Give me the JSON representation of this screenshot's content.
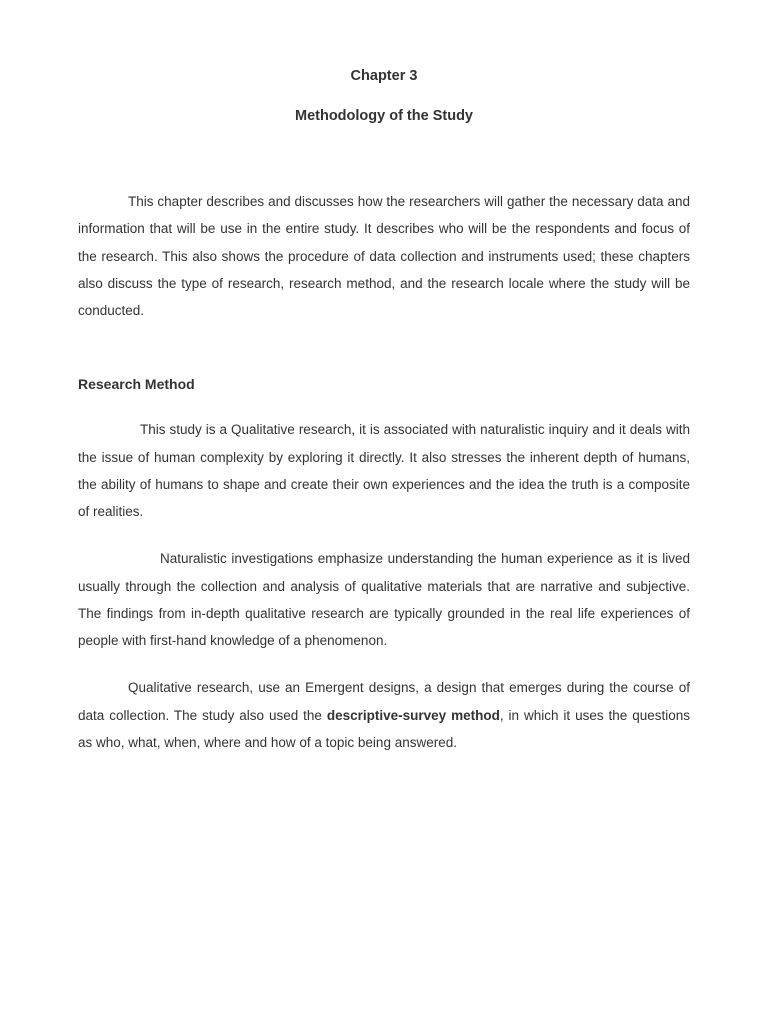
{
  "chapter": {
    "number": "Chapter 3",
    "title": "Methodology of the Study"
  },
  "intro": "This chapter describes and discusses how the researchers will gather the necessary data and information that will be use in the entire study. It describes who will be the respondents and focus of the research. This also shows the procedure of data collection and instruments used; these chapters also discuss the type of research, research method, and the research locale where the study will be conducted.",
  "section": {
    "heading": "Research Method",
    "para1": "This study is a Qualitative research, it is associated with naturalistic inquiry and it deals with the issue of human complexity by exploring it directly. It also stresses the inherent depth of humans, the ability of humans to shape and create their own experiences and the idea the truth is a composite of realities.",
    "para2": "Naturalistic investigations emphasize understanding the human experience as it is lived usually through the collection and analysis of qualitative materials that are narrative and subjective. The findings from in-depth qualitative research are typically grounded in the real life experiences of people with first-hand knowledge of a phenomenon.",
    "para3_a": "Qualitative research, use an Emergent designs, a design that emerges during the course of data collection. The study also used the ",
    "para3_bold": "descriptive-survey method",
    "para3_b": ", in which it uses the questions as who, what, when, where and how of a topic being answered."
  },
  "style": {
    "background": "#ffffff",
    "text_color": "#333333",
    "font_family": "Verdana, Geneva, sans-serif",
    "heading_fontsize": 14.5,
    "body_fontsize": 13.5,
    "line_height": 2.02
  }
}
